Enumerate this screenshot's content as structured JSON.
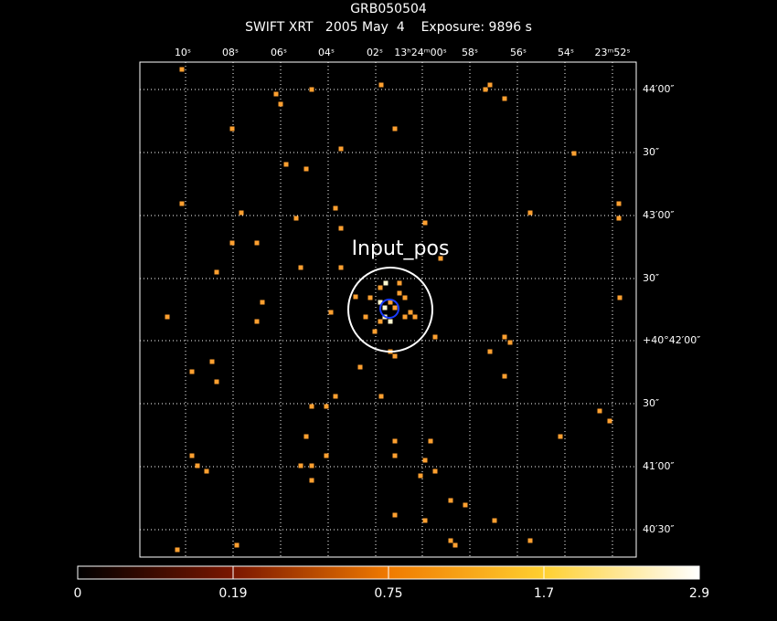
{
  "header": {
    "object": "GRB050504",
    "info": "SWIFT XRT   2005 May  4    Exposure: 9896 s"
  },
  "ra_labels": [
    "10ˢ",
    "08ˢ",
    "06ˢ",
    "04ˢ",
    "02ˢ",
    "13ʰ24ᵐ00ˢ",
    "58ˢ",
    "56ˢ",
    "54ˢ",
    "23ᵐ52ˢ"
  ],
  "dec_labels": [
    "44′00″",
    "30″",
    "43′00″",
    "30″",
    "+40°42′00″",
    "30″",
    "41′00″",
    "40′30″"
  ],
  "annotation": "Input_pos",
  "colorbar": {
    "labels": [
      "0",
      "0.19",
      "0.75",
      "1.7",
      "2.9"
    ]
  }
}
